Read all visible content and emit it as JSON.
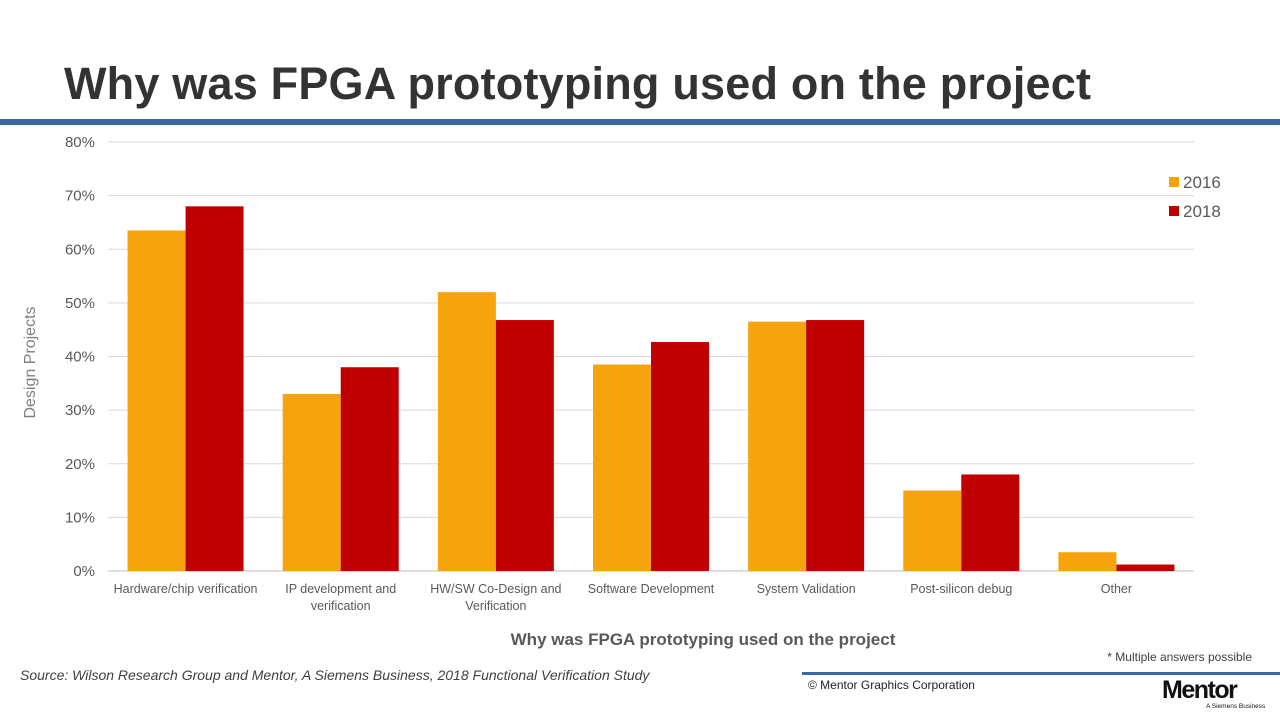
{
  "slide": {
    "title": "Why was FPGA prototyping used on the project",
    "note": "* Multiple answers possible",
    "source": "Source:  Wilson Research Group and Mentor, A Siemens Business, 2018 Functional Verification Study",
    "copyright": "© Mentor Graphics Corporation",
    "logo_text": "Mentor",
    "logo_subtext": "A Siemens Business",
    "accent_color": "#3a66a3"
  },
  "chart_data": {
    "type": "bar",
    "xlabel": "Why was FPGA prototyping used on the project",
    "ylabel": "Design Projects",
    "ylim": [
      0,
      0.8
    ],
    "yticks": [
      "0%",
      "10%",
      "20%",
      "30%",
      "40%",
      "50%",
      "60%",
      "70%",
      "80%"
    ],
    "grid": true,
    "legend_position": "top-right",
    "categories": [
      [
        "Hardware/chip verification"
      ],
      [
        "IP development and",
        "verification"
      ],
      [
        "HW/SW Co-Design and",
        "Verification"
      ],
      [
        "Software Development"
      ],
      [
        "System Validation"
      ],
      [
        "Post-silicon debug"
      ],
      [
        "Other"
      ]
    ],
    "series": [
      {
        "name": "2016",
        "color": "#f5a40e",
        "values": [
          0.635,
          0.33,
          0.52,
          0.385,
          0.465,
          0.15,
          0.035
        ]
      },
      {
        "name": "2018",
        "color": "#c00000",
        "values": [
          0.68,
          0.38,
          0.468,
          0.427,
          0.468,
          0.18,
          0.012
        ]
      }
    ]
  }
}
